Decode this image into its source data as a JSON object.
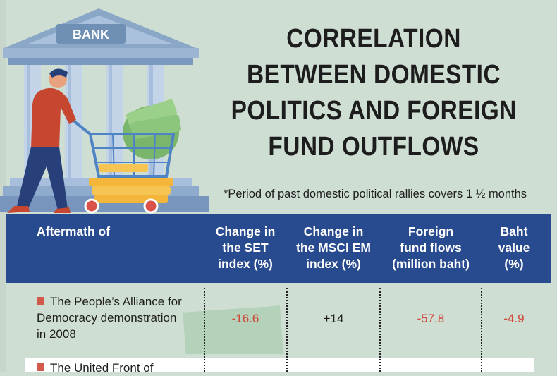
{
  "bank_sign": "BANK",
  "title_lines": [
    "CORRELATION",
    "BETWEEN DOMESTIC",
    "POLITICS AND FOREIGN",
    "FUND OUTFLOWS"
  ],
  "note": "*Period of past domestic political rallies covers 1 ½ months",
  "table": {
    "headers": {
      "aftermath": "Aftermath of",
      "set": [
        "Change in",
        "the SET",
        "index (%)"
      ],
      "msci": [
        "Change in",
        "the MSCI EM",
        "index (%)"
      ],
      "flows": [
        "Foreign",
        "fund flows",
        "(million baht)"
      ],
      "baht": [
        "Baht",
        "value",
        "(%)"
      ]
    },
    "rows": [
      {
        "label_lines": [
          "The People’s Alliance for",
          "Democracy demonstration",
          "in 2008"
        ],
        "set": "-16.6",
        "msci": "+14",
        "flows": "-57.8",
        "baht": "-4.9"
      },
      {
        "label_lines": [
          "The United Front of"
        ]
      }
    ]
  },
  "colors": {
    "header_bg": "#284a8e",
    "background": "#cfded2",
    "negative": "#d0473a",
    "bullet": "#d15a4a"
  }
}
